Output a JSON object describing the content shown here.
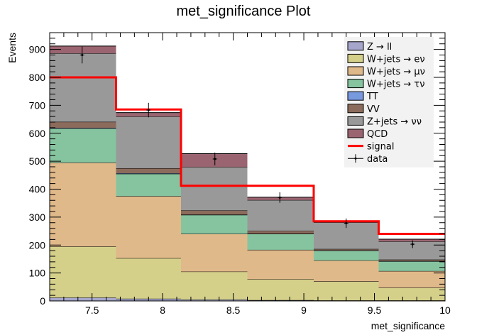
{
  "chart_data": {
    "type": "bar",
    "title": "met_significance Plot",
    "xlabel": "met_significance",
    "ylabel": "Events",
    "xlim": [
      7.2,
      10
    ],
    "ylim": [
      0,
      960
    ],
    "x_ticks": [
      "7.5",
      "8",
      "8.5",
      "9",
      "9.5",
      "10"
    ],
    "y_ticks": [
      "0",
      "100",
      "200",
      "300",
      "400",
      "500",
      "600",
      "700",
      "800",
      "900"
    ],
    "bin_edges": [
      7.2,
      7.67,
      8.13,
      8.6,
      9.07,
      9.53,
      10
    ],
    "stacked_series": [
      {
        "name": "Z → ll",
        "color": "#a6a6cc",
        "values": [
          12,
          8,
          5,
          3,
          2,
          2
        ]
      },
      {
        "name": "W+jets → eν",
        "color": "#d4d08a",
        "values": [
          183,
          145,
          100,
          75,
          68,
          45
        ]
      },
      {
        "name": "W+jets → μν",
        "color": "#e0b98a",
        "values": [
          300,
          222,
          135,
          105,
          75,
          60
        ]
      },
      {
        "name": "W+jets → τν",
        "color": "#86c4a0",
        "values": [
          122,
          80,
          68,
          57,
          35,
          35
        ]
      },
      {
        "name": "TT",
        "color": "#7799dd",
        "values": [
          2,
          2,
          1,
          1,
          1,
          1
        ]
      },
      {
        "name": "VV",
        "color": "#8b6b5b",
        "values": [
          22,
          18,
          15,
          10,
          5,
          5
        ]
      },
      {
        "name": "Z+jets → νν",
        "color": "#999999",
        "values": [
          245,
          185,
          155,
          110,
          95,
          65
        ]
      },
      {
        "name": "QCD",
        "color": "#9a6470",
        "values": [
          26,
          14,
          48,
          10,
          5,
          8
        ]
      }
    ],
    "signal": {
      "name": "signal",
      "color": "#ff0000",
      "values": [
        800,
        685,
        412,
        412,
        285,
        240
      ]
    },
    "data": {
      "name": "data",
      "x": [
        7.43,
        7.9,
        8.37,
        8.83,
        9.3,
        9.77
      ],
      "y": [
        880,
        683,
        508,
        370,
        278,
        203
      ],
      "yerr": [
        30,
        26,
        23,
        19,
        17,
        14
      ]
    },
    "legend_position": "top-right"
  }
}
